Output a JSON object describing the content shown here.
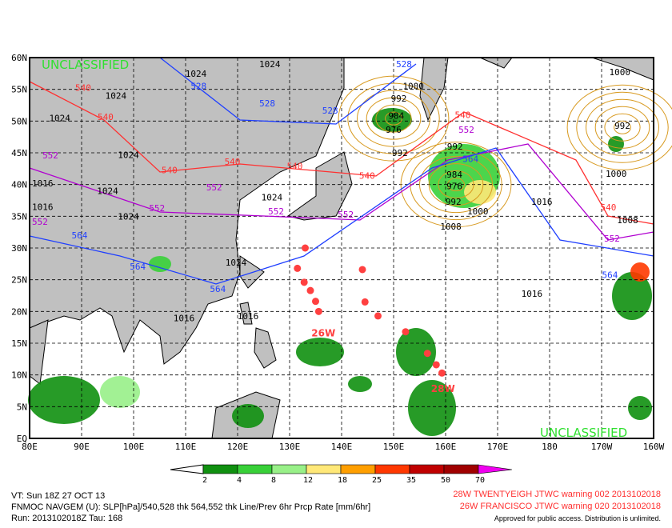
{
  "map": {
    "classification_top": "UNCLASSIFIED",
    "classification_bottom": "UNCLASSIFIED",
    "lon_ticks": [
      "80E",
      "90E",
      "100E",
      "110E",
      "120E",
      "130E",
      "140E",
      "150E",
      "160E",
      "170E",
      "180",
      "170W",
      "160W"
    ],
    "lat_ticks": [
      "60N",
      "55N",
      "50N",
      "45N",
      "40N",
      "35N",
      "30N",
      "25N",
      "20N",
      "15N",
      "10N",
      "5N",
      "EQ"
    ],
    "colors": {
      "land": "#c0c0c0",
      "slp": "#000000",
      "thk_528": "#1f3fff",
      "thk_540": "#ff3030",
      "thk_552": "#b000d0",
      "thk_564": "#1f3fff",
      "slp_secondary": "#d89a20",
      "storm": "#ff4040"
    },
    "slp_labels": [
      {
        "v": "1024",
        "lon": 126.2,
        "lat": 59
      },
      {
        "v": "1024",
        "lon": 112,
        "lat": 57.5
      },
      {
        "v": "1024",
        "lon": 96.6,
        "lat": 54
      },
      {
        "v": "1024",
        "lon": 85.8,
        "lat": 50.5
      },
      {
        "v": "1024",
        "lon": 99,
        "lat": 44.7
      },
      {
        "v": "1024",
        "lon": 95,
        "lat": 39
      },
      {
        "v": "1024",
        "lon": 99,
        "lat": 35
      },
      {
        "v": "1024",
        "lon": 119.7,
        "lat": 27.7
      },
      {
        "v": "1024",
        "lon": 126.6,
        "lat": 38
      },
      {
        "v": "1016",
        "lon": 81.3,
        "lat": 40.2
      },
      {
        "v": "1016",
        "lon": 81.3,
        "lat": 36.5
      },
      {
        "v": "1016",
        "lon": 109.7,
        "lat": 19
      },
      {
        "v": "1016",
        "lon": 122,
        "lat": 19.3
      },
      {
        "v": "1016",
        "lon": 176.6,
        "lat": 22.8
      },
      {
        "v": "1016",
        "lon": 178.5,
        "lat": 37.3
      },
      {
        "v": "1008",
        "lon": 161,
        "lat": 33.4
      },
      {
        "v": "1008",
        "lon": 195,
        "lat": 34.4
      },
      {
        "v": "1000",
        "lon": 193.5,
        "lat": 57.7
      },
      {
        "v": "1000",
        "lon": 192.8,
        "lat": 41.7
      },
      {
        "v": "992",
        "lon": 194,
        "lat": 49.3
      },
      {
        "v": "1000",
        "lon": 153.8,
        "lat": 55.5
      },
      {
        "v": "992",
        "lon": 151,
        "lat": 53.6
      },
      {
        "v": "984",
        "lon": 150.5,
        "lat": 52
      },
      {
        "v": "976",
        "lon": 150,
        "lat": 50.4
      },
      {
        "v": "992",
        "lon": 151.2,
        "lat": 45
      },
      {
        "v": "992",
        "lon": 161.8,
        "lat": 46
      },
      {
        "v": "984",
        "lon": 161.7,
        "lat": 41.6
      },
      {
        "v": "976",
        "lon": 161.7,
        "lat": 39.8
      },
      {
        "v": "992",
        "lon": 161.5,
        "lat": 37.3
      },
      {
        "v": "1000",
        "lon": 162.5,
        "lat": 35.8
      }
    ],
    "thickness_labels": [
      {
        "v": "540",
        "lon": 90.3,
        "lat": 55.3,
        "c": "thk_540"
      },
      {
        "v": "540",
        "lon": 94.6,
        "lat": 50.7,
        "c": "thk_540"
      },
      {
        "v": "540",
        "lon": 106.9,
        "lat": 42.3,
        "c": "thk_540"
      },
      {
        "v": "540",
        "lon": 119,
        "lat": 43.6,
        "c": "thk_540"
      },
      {
        "v": "540",
        "lon": 131,
        "lat": 42.9,
        "c": "thk_540"
      },
      {
        "v": "540",
        "lon": 144.9,
        "lat": 41.4,
        "c": "thk_540"
      },
      {
        "v": "540",
        "lon": 163.3,
        "lat": 51,
        "c": "thk_540"
      },
      {
        "v": "540",
        "lon": 191.3,
        "lat": 35.3,
        "c": "thk_540"
      },
      {
        "v": "552",
        "lon": 84,
        "lat": 44.6,
        "c": "thk_552"
      },
      {
        "v": "552",
        "lon": 115.5,
        "lat": 39.6,
        "c": "thk_552"
      },
      {
        "v": "552",
        "lon": 104.5,
        "lat": 36.3,
        "c": "thk_552"
      },
      {
        "v": "552",
        "lon": 127.4,
        "lat": 35.8,
        "c": "thk_552"
      },
      {
        "v": "552",
        "lon": 140.8,
        "lat": 35.3,
        "c": "thk_552"
      },
      {
        "v": "552",
        "lon": 164,
        "lat": 47.5,
        "c": "thk_552"
      },
      {
        "v": "552",
        "lon": 192,
        "lat": 31.5,
        "c": "thk_552"
      },
      {
        "v": "552",
        "lon": 80.5,
        "lat": 35.3,
        "c": "thk_552"
      },
      {
        "v": "528",
        "lon": 112.5,
        "lat": 57.3,
        "c": "thk_528"
      },
      {
        "v": "528",
        "lon": 125.7,
        "lat": 52.8,
        "c": "thk_528"
      },
      {
        "v": "528",
        "lon": 137.8,
        "lat": 51.7,
        "c": "thk_528"
      },
      {
        "v": "528",
        "lon": 152,
        "lat": 59
      },
      {
        "v": "564",
        "lon": 89.6,
        "lat": 32,
        "c": "thk_564"
      },
      {
        "v": "564",
        "lon": 100.8,
        "lat": 27.1,
        "c": "thk_564"
      },
      {
        "v": "564",
        "lon": 116.2,
        "lat": 23.6,
        "c": "thk_564"
      },
      {
        "v": "564",
        "lon": 164.8,
        "lat": 45.2,
        "c": "thk_564"
      },
      {
        "v": "564",
        "lon": 191.6,
        "lat": 25.8,
        "c": "thk_564"
      }
    ],
    "storms": [
      {
        "label": "26W",
        "lon": 136.5,
        "lat": 16.6,
        "track": [
          [
            133,
            30
          ],
          [
            131.5,
            26.8
          ],
          [
            132.8,
            24.6
          ],
          [
            134,
            23.3
          ],
          [
            135,
            21.6
          ],
          [
            135.6,
            20
          ]
        ]
      },
      {
        "label": "28W",
        "lon": 159.5,
        "lat": 7.8,
        "track": [
          [
            144,
            26.6
          ],
          [
            144.5,
            21.5
          ],
          [
            147,
            19.3
          ],
          [
            152.3,
            16.8
          ],
          [
            156.5,
            13.4
          ],
          [
            158.2,
            11.6
          ],
          [
            159.3,
            10.3
          ]
        ]
      }
    ]
  },
  "legend": {
    "ticks": [
      "2",
      "4",
      "8",
      "12",
      "18",
      "25",
      "35",
      "50",
      "70"
    ],
    "colors": [
      "#109010",
      "#38d038",
      "#98f088",
      "#ffe878",
      "#ff9f00",
      "#ff3800",
      "#c00000",
      "#a00000",
      "#f000f0"
    ]
  },
  "footer": {
    "vt": "VT: Sun 18Z 27 OCT 13",
    "model": "FNMOC NAVGEM (U): SLP[hPa]/540,528 thk 564,552 thk Line/Prev 6hr Prcp Rate [mm/6hr]",
    "run": "Run: 2013102018Z Tau: 168",
    "warning_28w": "28W TWENTYEIGH JTWC warning 002 2013102018",
    "warning_26w": "26W FRANCISCO JTWC warning 020 2013102018",
    "distribution": "Approved for public access. Distribution is unlimited."
  }
}
